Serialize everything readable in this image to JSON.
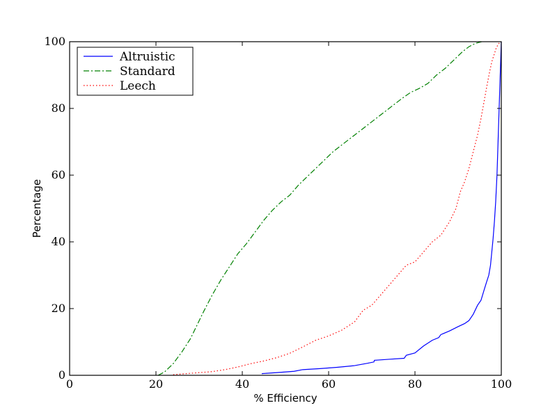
{
  "chart_data": {
    "type": "line",
    "xlabel": "% Efficiency",
    "ylabel": "Percentage",
    "xlim": [
      0,
      100
    ],
    "ylim": [
      0,
      100
    ],
    "xticks": [
      "0",
      "20",
      "40",
      "60",
      "80",
      "100"
    ],
    "yticks": [
      "0",
      "20",
      "40",
      "60",
      "80",
      "100"
    ],
    "grid": false,
    "legend_position": "top-left",
    "series": [
      {
        "name": "Altruistic",
        "color": "#0000ff",
        "style": "solid",
        "x": [
          44.5,
          48,
          52,
          54,
          58,
          62,
          66,
          69,
          70.5,
          70.6,
          74,
          77.5,
          78,
          80,
          82,
          84,
          85.5,
          86,
          88,
          90,
          91.5,
          92.5,
          93.5,
          94.5,
          95.3,
          96,
          96.6,
          97.1,
          97.5,
          97.8,
          98.1,
          98.4,
          98.7,
          99,
          99.2,
          99.4,
          99.6,
          99.8,
          100
        ],
        "y": [
          0.5,
          0.8,
          1.2,
          1.7,
          2.0,
          2.4,
          2.9,
          3.6,
          4.0,
          4.5,
          4.8,
          5.1,
          6.0,
          6.7,
          8.8,
          10.5,
          11.3,
          12.2,
          13.3,
          14.6,
          15.5,
          16.4,
          18.3,
          21.0,
          22.5,
          25.5,
          28.0,
          30.0,
          33.0,
          37.0,
          41.0,
          46.0,
          52.0,
          60.0,
          68.0,
          76.0,
          84.0,
          92.0,
          100.0
        ]
      },
      {
        "name": "Standard",
        "color": "#008000",
        "style": "dashdot",
        "x": [
          20.5,
          22,
          24,
          26,
          28,
          29.5,
          31,
          33,
          35,
          37,
          39,
          41,
          43,
          45,
          47,
          49,
          51,
          53,
          55,
          57,
          59,
          61,
          63,
          65,
          67,
          69,
          71,
          73,
          75,
          77,
          79,
          81,
          83,
          85,
          87,
          89,
          91,
          92.5,
          94,
          95.5
        ],
        "y": [
          0,
          1.0,
          3.5,
          7.0,
          11.0,
          15.0,
          19.0,
          24.0,
          28.5,
          32.5,
          36.5,
          39.5,
          43.0,
          46.5,
          49.5,
          52.0,
          54.0,
          57.0,
          59.5,
          62.0,
          64.5,
          67.0,
          69.0,
          71.0,
          73.0,
          75.0,
          77.0,
          79.0,
          81.0,
          83.0,
          84.8,
          86.0,
          87.5,
          90.0,
          92.0,
          94.5,
          97.0,
          98.5,
          99.5,
          100.0
        ]
      },
      {
        "name": "Leech",
        "color": "#ff0000",
        "style": "dotted",
        "x": [
          24,
          27,
          30,
          33,
          36,
          39,
          42,
          45,
          48,
          51,
          54,
          57,
          60,
          63,
          66,
          68,
          70,
          72,
          74,
          76,
          78,
          80,
          82,
          84,
          86,
          88,
          89.5,
          90.5,
          91.5,
          92.5,
          93.5,
          94.5,
          95.3,
          96,
          96.7,
          97.3,
          97.8,
          98.3,
          98.8,
          99.3,
          99.7,
          100
        ],
        "y": [
          0.2,
          0.5,
          0.8,
          1.1,
          1.7,
          2.5,
          3.5,
          4.3,
          5.3,
          6.6,
          8.5,
          10.5,
          11.8,
          13.5,
          16.0,
          19.5,
          21.0,
          24.0,
          27.0,
          30.0,
          33.0,
          34.0,
          37.0,
          40.0,
          42.0,
          46.0,
          50.0,
          55.0,
          58.0,
          62.0,
          67.0,
          72.0,
          77.0,
          82.0,
          87.0,
          91.0,
          94.0,
          96.0,
          98.0,
          99.3,
          99.8,
          100.0
        ]
      }
    ]
  }
}
